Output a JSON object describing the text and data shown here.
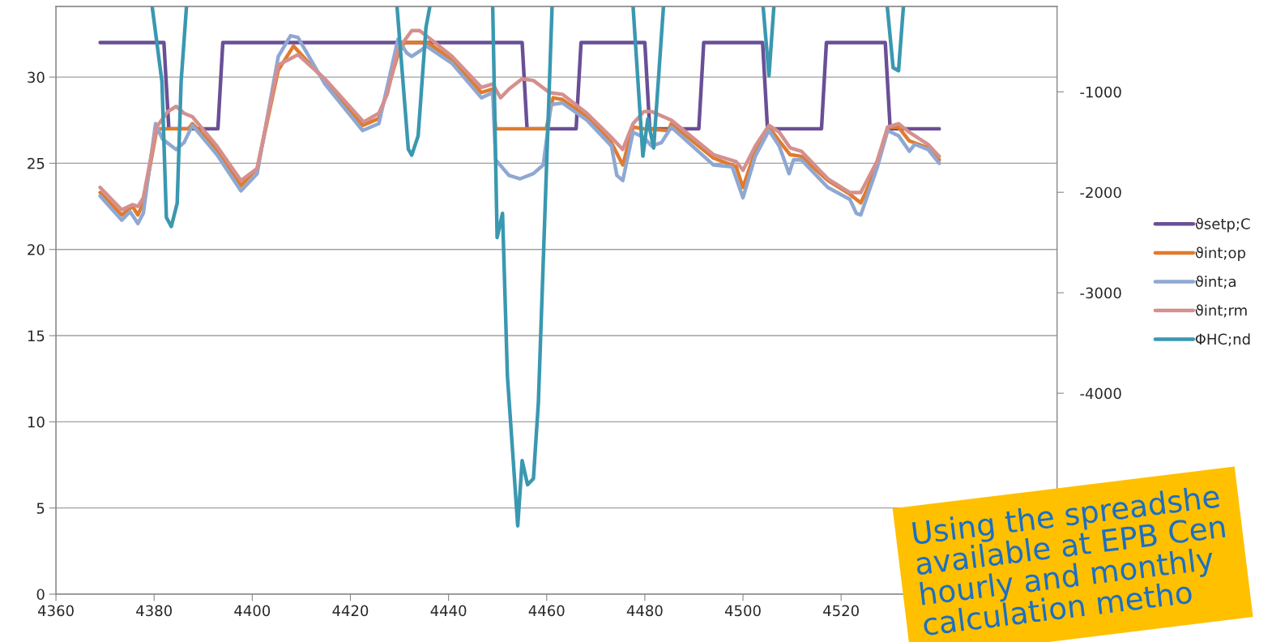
{
  "chart_data": {
    "type": "line",
    "xlim": [
      4360,
      4564
    ],
    "xticks": [
      4360,
      4380,
      4400,
      4420,
      4440,
      4460,
      4480,
      4500,
      4520
    ],
    "ylim": [
      0,
      34.1
    ],
    "yticks": [
      0,
      5,
      10,
      15,
      20,
      25,
      30
    ],
    "y2lim": [
      -6000,
      -150
    ],
    "y2ticks": [
      -4000,
      -3000,
      -2000,
      -1000
    ],
    "grid": "y",
    "legend": "right",
    "line_style": "solid",
    "marker": "none",
    "series": [
      {
        "name": "ϑsetp;C",
        "color": "#6a4f96",
        "x": [
          4369,
          4382,
          4383,
          4393,
          4394,
          4455,
          4456,
          4466,
          4467,
          4480,
          4481,
          4491,
          4492,
          4504,
          4505,
          4516,
          4517,
          4529,
          4530,
          4540
        ],
        "values": [
          32,
          32,
          27,
          27,
          32,
          32,
          27,
          27,
          32,
          32,
          27,
          27,
          32,
          32,
          27,
          27,
          32,
          32,
          27,
          27
        ]
      },
      {
        "name": "ϑint;op",
        "color": "#e07b2d",
        "x": [
          4369,
          4373.4,
          4375.6,
          4376.7,
          4377.8,
          4380.5,
          4381,
          4387,
          4387.8,
          4392.8,
          4397.7,
          4401,
          4405.3,
          4408.4,
          4414.8,
          4422.5,
          4425.8,
          4429.7,
          4431,
          4435.8,
          4440.7,
          4446.7,
          4449,
          4449.6,
          4459.9,
          4461.3,
          4463.2,
          4468.2,
          4473.2,
          4475.5,
          4477.6,
          4479.8,
          4484.8,
          4485.4,
          4494,
          4498.6,
          4500,
          4502.5,
          4505.3,
          4507.4,
          4509.6,
          4511.9,
          4517.3,
          4521.8,
          4524,
          4525,
          4527.3,
          4529.5,
          4531.7,
          4533.9,
          4537.7,
          4540
        ],
        "values": [
          23.3,
          22.0,
          22.5,
          22.0,
          22.7,
          26.9,
          27.0,
          27.0,
          27.3,
          25.8,
          23.7,
          24.7,
          30.4,
          31.8,
          29.8,
          27.2,
          27.6,
          31.3,
          32.0,
          32.0,
          31.0,
          29.1,
          29.3,
          27.0,
          27.0,
          28.8,
          28.7,
          27.7,
          26.2,
          24.9,
          27.1,
          27.0,
          26.9,
          27.3,
          25.3,
          24.8,
          23.6,
          25.7,
          27.1,
          26.3,
          25.5,
          25.4,
          24.0,
          23.2,
          22.7,
          23.3,
          24.9,
          27.1,
          27.1,
          26.3,
          25.9,
          25.2
        ]
      },
      {
        "name": "ϑint;a",
        "color": "#8fa8d2",
        "x": [
          4369,
          4373.4,
          4375.1,
          4376.7,
          4377.8,
          4380.3,
          4381.7,
          4384.5,
          4386.1,
          4387.8,
          4392.8,
          4397.7,
          4401,
          4405.3,
          4407.8,
          4409.3,
          4414.8,
          4422.5,
          4425.8,
          4429.7,
          4431.5,
          4432.5,
          4434.1,
          4435.5,
          4440.7,
          4446.7,
          4449,
          4449.6,
          4452.3,
          4454.6,
          4457.3,
          4459.3,
          4460.9,
          4463.2,
          4468.2,
          4473.2,
          4474.3,
          4475.5,
          4477.6,
          4479.8,
          4481.4,
          4483.4,
          4485.4,
          4494,
          4497.8,
          4500,
          4502.5,
          4505.3,
          4507.4,
          4509.4,
          4510.3,
          4511.9,
          4517.3,
          4521.8,
          4523.1,
          4524,
          4527.3,
          4529.5,
          4531.7,
          4533.9,
          4535,
          4537.7,
          4540
        ],
        "values": [
          23.1,
          21.7,
          22.2,
          21.5,
          22.1,
          27.3,
          26.4,
          25.8,
          26.2,
          27.2,
          25.5,
          23.4,
          24.4,
          31.2,
          32.4,
          32.3,
          29.6,
          26.9,
          27.3,
          32.2,
          31.4,
          31.2,
          31.5,
          31.8,
          30.8,
          28.8,
          29.1,
          25.2,
          24.3,
          24.1,
          24.4,
          24.9,
          28.4,
          28.5,
          27.5,
          26.0,
          24.3,
          24.0,
          26.8,
          26.5,
          26.0,
          26.2,
          27.1,
          24.9,
          24.8,
          23.0,
          25.4,
          26.9,
          26.0,
          24.4,
          25.2,
          25.2,
          23.6,
          22.9,
          22.1,
          22.0,
          24.7,
          26.9,
          26.6,
          25.7,
          26.1,
          25.8,
          25.0
        ]
      },
      {
        "name": "ϑint;rm",
        "color": "#d4908e",
        "x": [
          4369,
          4373.4,
          4375.6,
          4376.7,
          4377.8,
          4380.5,
          4382.8,
          4384.5,
          4386.1,
          4387.8,
          4392.8,
          4397.7,
          4401,
          4405.3,
          4409.3,
          4414.8,
          4422.7,
          4425.8,
          4427.5,
          4429.7,
          4432.5,
          4434.1,
          4436.8,
          4440.7,
          4446.7,
          4449,
          4450.6,
          4452.3,
          4455,
          4457.3,
          4460.6,
          4463.2,
          4468.2,
          4473.2,
          4475.5,
          4477.6,
          4479.8,
          4481.4,
          4485.4,
          4494,
          4498.6,
          4500,
          4502.5,
          4505.3,
          4507.4,
          4509.6,
          4511.9,
          4517.3,
          4521.8,
          4524,
          4527.3,
          4529.5,
          4531.7,
          4533.9,
          4537.7,
          4540
        ],
        "values": [
          23.6,
          22.3,
          22.6,
          22.5,
          23.0,
          27.1,
          28.0,
          28.3,
          27.9,
          27.7,
          26.0,
          24.0,
          24.7,
          30.7,
          31.3,
          29.9,
          27.4,
          27.9,
          29.0,
          31.6,
          32.7,
          32.7,
          32.1,
          31.2,
          29.4,
          29.6,
          28.8,
          29.3,
          29.9,
          29.8,
          29.1,
          29.0,
          27.9,
          26.5,
          25.8,
          27.3,
          28.0,
          28.0,
          27.5,
          25.5,
          25.1,
          24.6,
          26.0,
          27.2,
          26.8,
          25.9,
          25.7,
          24.1,
          23.3,
          23.3,
          25.1,
          27.1,
          27.3,
          26.8,
          26.1,
          25.4
        ]
      },
      {
        "name": "ΦHC;nd",
        "color": "#3a98b0",
        "axis": "y2",
        "x": [
          4379.6,
          4381.6,
          4382.5,
          4383.5,
          4384.7,
          4385.5,
          4386.6,
          4408,
          4429.5,
          4431.8,
          4432.5,
          4433.8,
          4435.4,
          4436.2,
          4442,
          4449,
          4449.9,
          4451,
          4452,
          4454.1,
          4455,
          4456.1,
          4457.3,
          4458.3,
          4461.1,
          4470,
          4477.6,
          4479.6,
          4480.6,
          4481.8,
          4483.8,
          4495,
          4504.1,
          4505.3,
          4506.3,
          4518,
          4529.4,
          4530.6,
          4531.7,
          4532.7
        ],
        "values": [
          -150,
          -900,
          -2250,
          -2340,
          -2110,
          -900,
          -150,
          null,
          -150,
          -1570,
          -1630,
          -1440,
          -360,
          -150,
          null,
          -150,
          -2450,
          -2210,
          -3830,
          -5320,
          -4670,
          -4910,
          -4850,
          -4100,
          -150,
          null,
          -150,
          -1640,
          -1270,
          -1560,
          -150,
          null,
          -150,
          -840,
          -150,
          null,
          -150,
          -760,
          -790,
          -150
        ]
      }
    ],
    "annotations": [
      "Using the spreadshe\navailable at EPB Cen\nhourly and monthly\ncalculation metho"
    ]
  }
}
